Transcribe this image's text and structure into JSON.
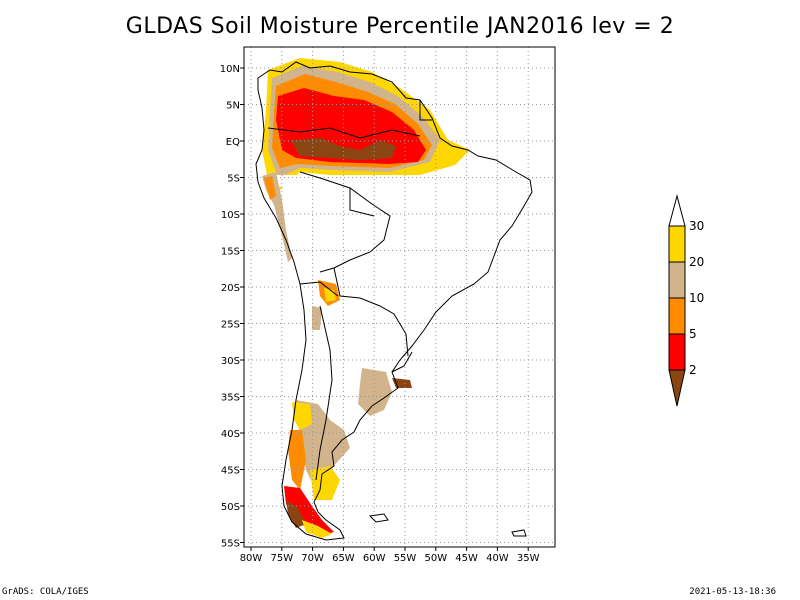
{
  "title": "GLDAS Soil Moisture Percentile JAN2016 lev = 2",
  "map": {
    "lat_labels": [
      "10N",
      "5N",
      "EQ",
      "5S",
      "10S",
      "15S",
      "20S",
      "25S",
      "30S",
      "35S",
      "40S",
      "45S",
      "50S",
      "55S"
    ],
    "lon_labels": [
      "80W",
      "75W",
      "70W",
      "65W",
      "60W",
      "55W",
      "50W",
      "45W",
      "40W",
      "35W"
    ],
    "lat_range": [
      -56,
      12
    ],
    "lon_range": [
      -81,
      -34
    ],
    "grid": true,
    "grid_style": "dotted"
  },
  "legend": {
    "labels": [
      "2",
      "5",
      "10",
      "20",
      "30"
    ],
    "colors": {
      "below_2": "#8b4513",
      "2_5": "#ff0000",
      "5_10": "#ff8c00",
      "10_20": "#d2b48c",
      "20_30": "#ffd700",
      "above_30": "#ffffff"
    }
  },
  "footer": {
    "left": "GrADS: COLA/IGES",
    "right": "2021-05-13-18:36"
  }
}
